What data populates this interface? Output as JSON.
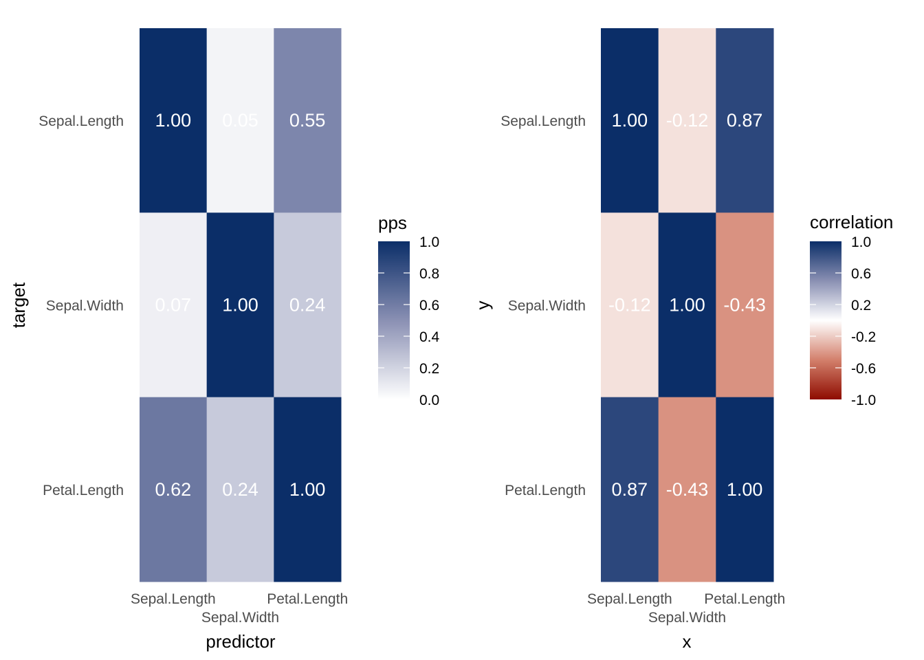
{
  "chart_data": [
    {
      "type": "heatmap",
      "xlabel": "predictor",
      "ylabel": "target",
      "x_categories": [
        "Sepal.Length",
        "Sepal.Width",
        "Petal.Length"
      ],
      "y_categories": [
        "Sepal.Length",
        "Sepal.Width",
        "Petal.Length"
      ],
      "values": [
        [
          1.0,
          0.05,
          0.55
        ],
        [
          0.07,
          1.0,
          0.24
        ],
        [
          0.62,
          0.24,
          1.0
        ]
      ],
      "labels": [
        [
          "1.00",
          "0.05",
          "0.55"
        ],
        [
          "0.07",
          "1.00",
          "0.24"
        ],
        [
          "0.62",
          "0.24",
          "1.00"
        ]
      ],
      "legend": {
        "title": "pps",
        "range": [
          0,
          1
        ],
        "ticks": [
          "1.0",
          "0.8",
          "0.6",
          "0.4",
          "0.2",
          "0.0"
        ],
        "tick_values": [
          1,
          0.8,
          0.6,
          0.4,
          0.2,
          0
        ],
        "placement": "right"
      },
      "color_stops": [
        [
          0,
          "#ffffff"
        ],
        [
          0.5,
          "#8a90b3"
        ],
        [
          1,
          "#0b2e68"
        ]
      ]
    },
    {
      "type": "heatmap",
      "xlabel": "x",
      "ylabel": "y",
      "x_categories": [
        "Sepal.Length",
        "Sepal.Width",
        "Petal.Length"
      ],
      "y_categories": [
        "Sepal.Length",
        "Sepal.Width",
        "Petal.Length"
      ],
      "values": [
        [
          1.0,
          -0.12,
          0.87
        ],
        [
          -0.12,
          1.0,
          -0.43
        ],
        [
          0.87,
          -0.43,
          1.0
        ]
      ],
      "labels": [
        [
          "1.00",
          "-0.12",
          "0.87"
        ],
        [
          "-0.12",
          "1.00",
          "-0.43"
        ],
        [
          "0.87",
          "-0.43",
          "1.00"
        ]
      ],
      "legend": {
        "title": "correlation",
        "range": [
          -1,
          1
        ],
        "ticks": [
          "1.0",
          "0.6",
          "0.2",
          "-0.2",
          "-0.6",
          "-1.0"
        ],
        "tick_values": [
          1,
          0.6,
          0.2,
          -0.2,
          -0.6,
          -1
        ],
        "placement": "right"
      },
      "color_stops": [
        [
          -1,
          "#8e0c00"
        ],
        [
          -0.5,
          "#d3806c"
        ],
        [
          0,
          "#ffffff"
        ],
        [
          0.5,
          "#8a90b3"
        ],
        [
          1,
          "#0b2e68"
        ]
      ]
    }
  ]
}
